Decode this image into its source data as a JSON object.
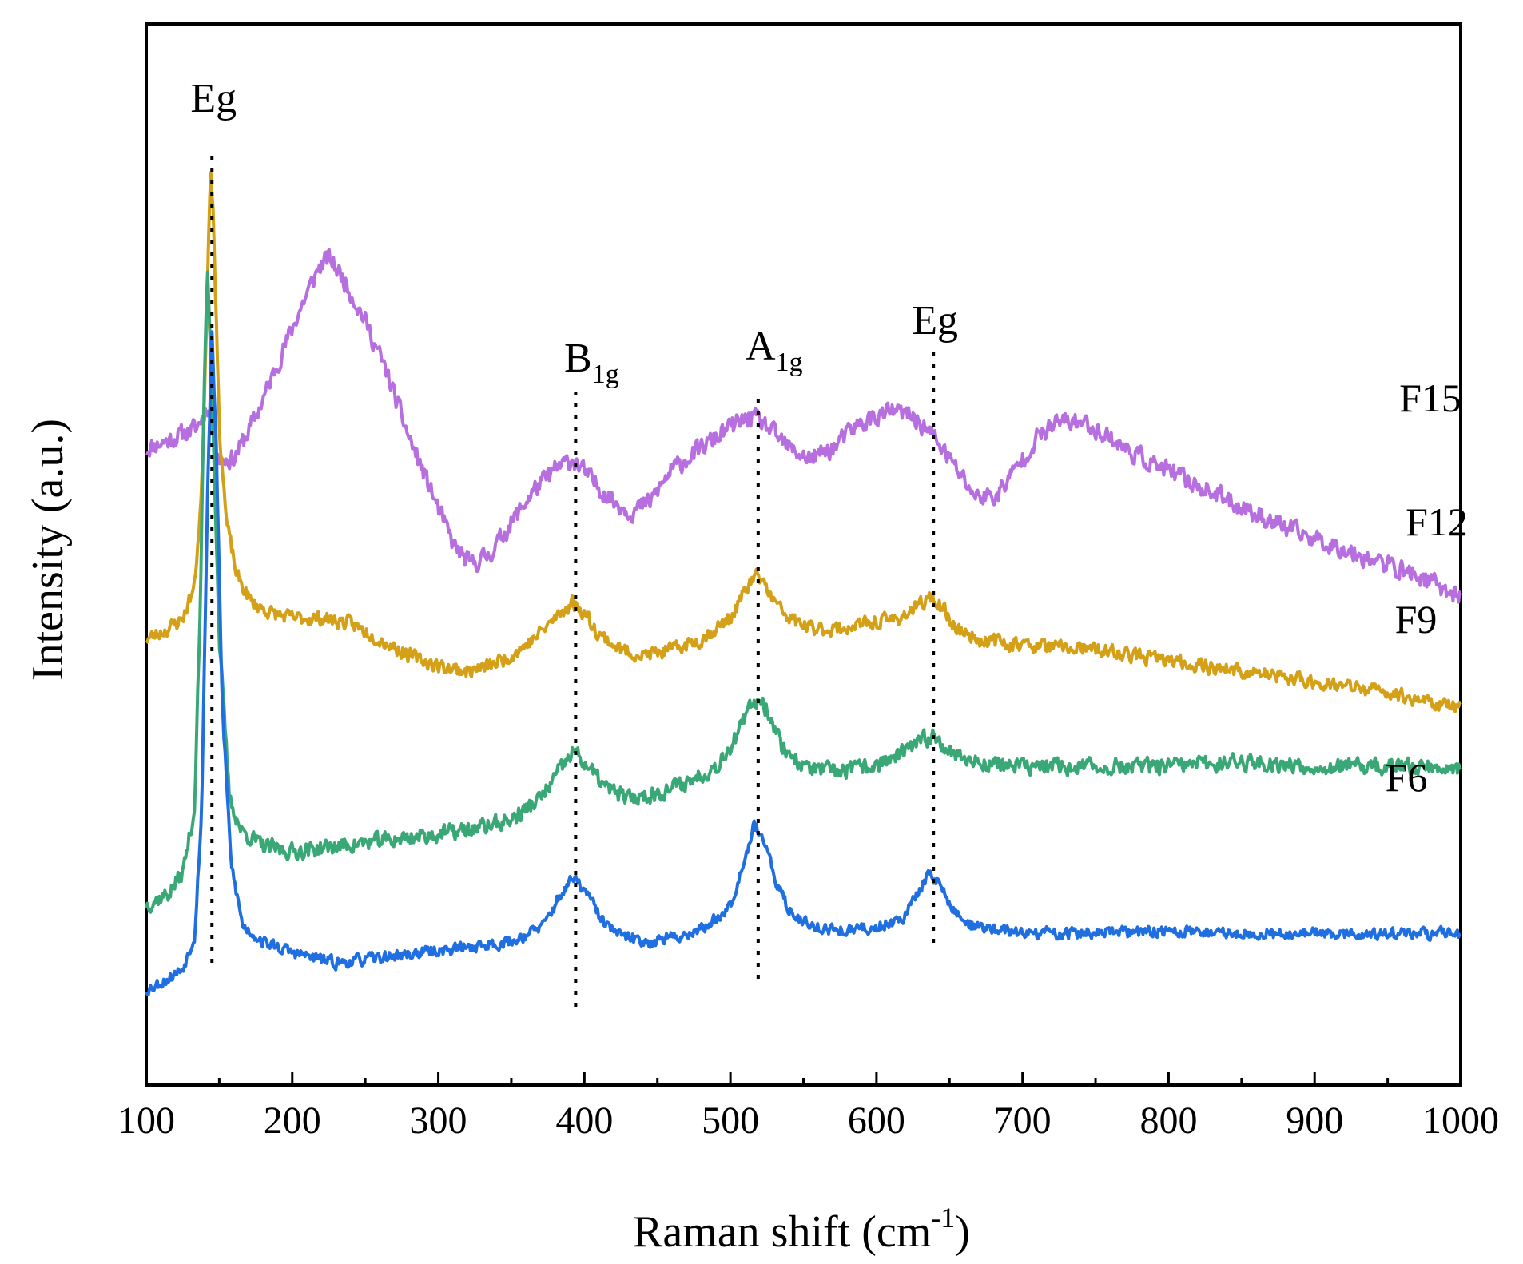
{
  "chart_data": {
    "type": "line",
    "title": "",
    "xlabel": "Raman shift (cm",
    "xlabel_sup": "-1",
    "xlabel_end": ")",
    "ylabel": "Intensity (a.u.)",
    "xlim": [
      100,
      1000
    ],
    "ylim": [
      0,
      1
    ],
    "xticks": [
      100,
      200,
      300,
      400,
      500,
      600,
      700,
      800,
      900,
      1000
    ],
    "xtick_labels": [
      "100",
      "200",
      "300",
      "400",
      "500",
      "600",
      "700",
      "800",
      "900",
      "1000"
    ],
    "yticks_shown": false,
    "peak_markers": [
      {
        "x": 145,
        "label": "Eg",
        "sub": ""
      },
      {
        "x": 394,
        "label": "B",
        "sub": "1g"
      },
      {
        "x": 519,
        "label": "A",
        "sub": "1g"
      },
      {
        "x": 639,
        "label": "Eg",
        "sub": ""
      }
    ],
    "series": [
      {
        "name": "F15",
        "color": "#b76fe0",
        "noise": 0.008,
        "seed": 11,
        "points": [
          [
            100,
            0.6
          ],
          [
            120,
            0.61
          ],
          [
            135,
            0.62
          ],
          [
            142,
            0.64
          ],
          [
            150,
            0.59
          ],
          [
            160,
            0.59
          ],
          [
            175,
            0.63
          ],
          [
            190,
            0.68
          ],
          [
            205,
            0.73
          ],
          [
            218,
            0.77
          ],
          [
            225,
            0.78
          ],
          [
            235,
            0.76
          ],
          [
            250,
            0.72
          ],
          [
            265,
            0.67
          ],
          [
            280,
            0.61
          ],
          [
            295,
            0.56
          ],
          [
            310,
            0.51
          ],
          [
            322,
            0.49
          ],
          [
            335,
            0.5
          ],
          [
            350,
            0.53
          ],
          [
            365,
            0.56
          ],
          [
            380,
            0.58
          ],
          [
            392,
            0.59
          ],
          [
            405,
            0.57
          ],
          [
            420,
            0.55
          ],
          [
            432,
            0.54
          ],
          [
            445,
            0.55
          ],
          [
            460,
            0.58
          ],
          [
            480,
            0.6
          ],
          [
            500,
            0.62
          ],
          [
            515,
            0.63
          ],
          [
            525,
            0.62
          ],
          [
            540,
            0.6
          ],
          [
            555,
            0.59
          ],
          [
            570,
            0.6
          ],
          [
            585,
            0.62
          ],
          [
            600,
            0.63
          ],
          [
            612,
            0.635
          ],
          [
            625,
            0.63
          ],
          [
            640,
            0.61
          ],
          [
            655,
            0.58
          ],
          [
            668,
            0.555
          ],
          [
            682,
            0.555
          ],
          [
            695,
            0.58
          ],
          [
            710,
            0.61
          ],
          [
            725,
            0.625
          ],
          [
            740,
            0.625
          ],
          [
            755,
            0.615
          ],
          [
            770,
            0.6
          ],
          [
            790,
            0.585
          ],
          [
            820,
            0.565
          ],
          [
            850,
            0.545
          ],
          [
            880,
            0.525
          ],
          [
            910,
            0.51
          ],
          [
            940,
            0.495
          ],
          [
            970,
            0.48
          ],
          [
            1000,
            0.46
          ]
        ]
      },
      {
        "name": "F12",
        "color": "#d4a017",
        "noise": 0.006,
        "seed": 23,
        "points": [
          [
            100,
            0.42
          ],
          [
            115,
            0.43
          ],
          [
            125,
            0.44
          ],
          [
            133,
            0.47
          ],
          [
            138,
            0.56
          ],
          [
            142,
            0.76
          ],
          [
            144,
            0.87
          ],
          [
            146,
            0.82
          ],
          [
            150,
            0.62
          ],
          [
            155,
            0.53
          ],
          [
            162,
            0.48
          ],
          [
            172,
            0.455
          ],
          [
            185,
            0.445
          ],
          [
            200,
            0.44
          ],
          [
            220,
            0.44
          ],
          [
            240,
            0.435
          ],
          [
            260,
            0.42
          ],
          [
            280,
            0.405
          ],
          [
            300,
            0.395
          ],
          [
            320,
            0.39
          ],
          [
            335,
            0.395
          ],
          [
            350,
            0.405
          ],
          [
            365,
            0.42
          ],
          [
            380,
            0.44
          ],
          [
            392,
            0.455
          ],
          [
            400,
            0.445
          ],
          [
            410,
            0.425
          ],
          [
            425,
            0.41
          ],
          [
            440,
            0.405
          ],
          [
            460,
            0.41
          ],
          [
            480,
            0.42
          ],
          [
            500,
            0.44
          ],
          [
            510,
            0.465
          ],
          [
            517,
            0.48
          ],
          [
            522,
            0.475
          ],
          [
            530,
            0.455
          ],
          [
            540,
            0.44
          ],
          [
            555,
            0.43
          ],
          [
            575,
            0.43
          ],
          [
            595,
            0.435
          ],
          [
            615,
            0.44
          ],
          [
            628,
            0.45
          ],
          [
            637,
            0.46
          ],
          [
            645,
            0.45
          ],
          [
            655,
            0.43
          ],
          [
            670,
            0.42
          ],
          [
            700,
            0.415
          ],
          [
            750,
            0.41
          ],
          [
            800,
            0.4
          ],
          [
            850,
            0.39
          ],
          [
            900,
            0.38
          ],
          [
            950,
            0.37
          ],
          [
            1000,
            0.355
          ]
        ]
      },
      {
        "name": "F9",
        "color": "#3aa876",
        "noise": 0.007,
        "seed": 37,
        "points": [
          [
            100,
            0.17
          ],
          [
            115,
            0.18
          ],
          [
            125,
            0.2
          ],
          [
            133,
            0.26
          ],
          [
            137,
            0.45
          ],
          [
            140,
            0.68
          ],
          [
            142,
            0.77
          ],
          [
            145,
            0.66
          ],
          [
            150,
            0.42
          ],
          [
            157,
            0.27
          ],
          [
            165,
            0.24
          ],
          [
            180,
            0.225
          ],
          [
            200,
            0.22
          ],
          [
            230,
            0.225
          ],
          [
            260,
            0.23
          ],
          [
            290,
            0.235
          ],
          [
            320,
            0.24
          ],
          [
            350,
            0.25
          ],
          [
            370,
            0.27
          ],
          [
            385,
            0.3
          ],
          [
            393,
            0.315
          ],
          [
            402,
            0.3
          ],
          [
            415,
            0.28
          ],
          [
            430,
            0.27
          ],
          [
            450,
            0.275
          ],
          [
            470,
            0.285
          ],
          [
            490,
            0.3
          ],
          [
            505,
            0.33
          ],
          [
            515,
            0.36
          ],
          [
            520,
            0.365
          ],
          [
            527,
            0.35
          ],
          [
            535,
            0.32
          ],
          [
            550,
            0.3
          ],
          [
            570,
            0.295
          ],
          [
            595,
            0.3
          ],
          [
            615,
            0.31
          ],
          [
            632,
            0.325
          ],
          [
            640,
            0.33
          ],
          [
            650,
            0.315
          ],
          [
            665,
            0.305
          ],
          [
            700,
            0.3
          ],
          [
            750,
            0.3
          ],
          [
            800,
            0.3
          ],
          [
            850,
            0.305
          ],
          [
            900,
            0.3
          ],
          [
            950,
            0.3
          ],
          [
            1000,
            0.3
          ]
        ]
      },
      {
        "name": "F6",
        "color": "#1f6fe0",
        "noise": 0.005,
        "seed": 53,
        "points": [
          [
            100,
            0.09
          ],
          [
            115,
            0.1
          ],
          [
            125,
            0.11
          ],
          [
            133,
            0.14
          ],
          [
            138,
            0.26
          ],
          [
            142,
            0.56
          ],
          [
            145,
            0.71
          ],
          [
            148,
            0.6
          ],
          [
            152,
            0.36
          ],
          [
            158,
            0.21
          ],
          [
            166,
            0.15
          ],
          [
            180,
            0.135
          ],
          [
            200,
            0.125
          ],
          [
            230,
            0.115
          ],
          [
            260,
            0.12
          ],
          [
            290,
            0.125
          ],
          [
            320,
            0.13
          ],
          [
            350,
            0.135
          ],
          [
            372,
            0.15
          ],
          [
            384,
            0.18
          ],
          [
            393,
            0.195
          ],
          [
            402,
            0.18
          ],
          [
            412,
            0.155
          ],
          [
            425,
            0.14
          ],
          [
            445,
            0.135
          ],
          [
            465,
            0.14
          ],
          [
            485,
            0.15
          ],
          [
            500,
            0.17
          ],
          [
            510,
            0.215
          ],
          [
            516,
            0.245
          ],
          [
            522,
            0.235
          ],
          [
            530,
            0.195
          ],
          [
            540,
            0.165
          ],
          [
            555,
            0.15
          ],
          [
            575,
            0.145
          ],
          [
            600,
            0.148
          ],
          [
            620,
            0.16
          ],
          [
            632,
            0.19
          ],
          [
            637,
            0.2
          ],
          [
            643,
            0.19
          ],
          [
            652,
            0.165
          ],
          [
            665,
            0.15
          ],
          [
            700,
            0.143
          ],
          [
            750,
            0.143
          ],
          [
            800,
            0.145
          ],
          [
            850,
            0.143
          ],
          [
            900,
            0.143
          ],
          [
            950,
            0.142
          ],
          [
            1000,
            0.143
          ]
        ]
      }
    ]
  }
}
